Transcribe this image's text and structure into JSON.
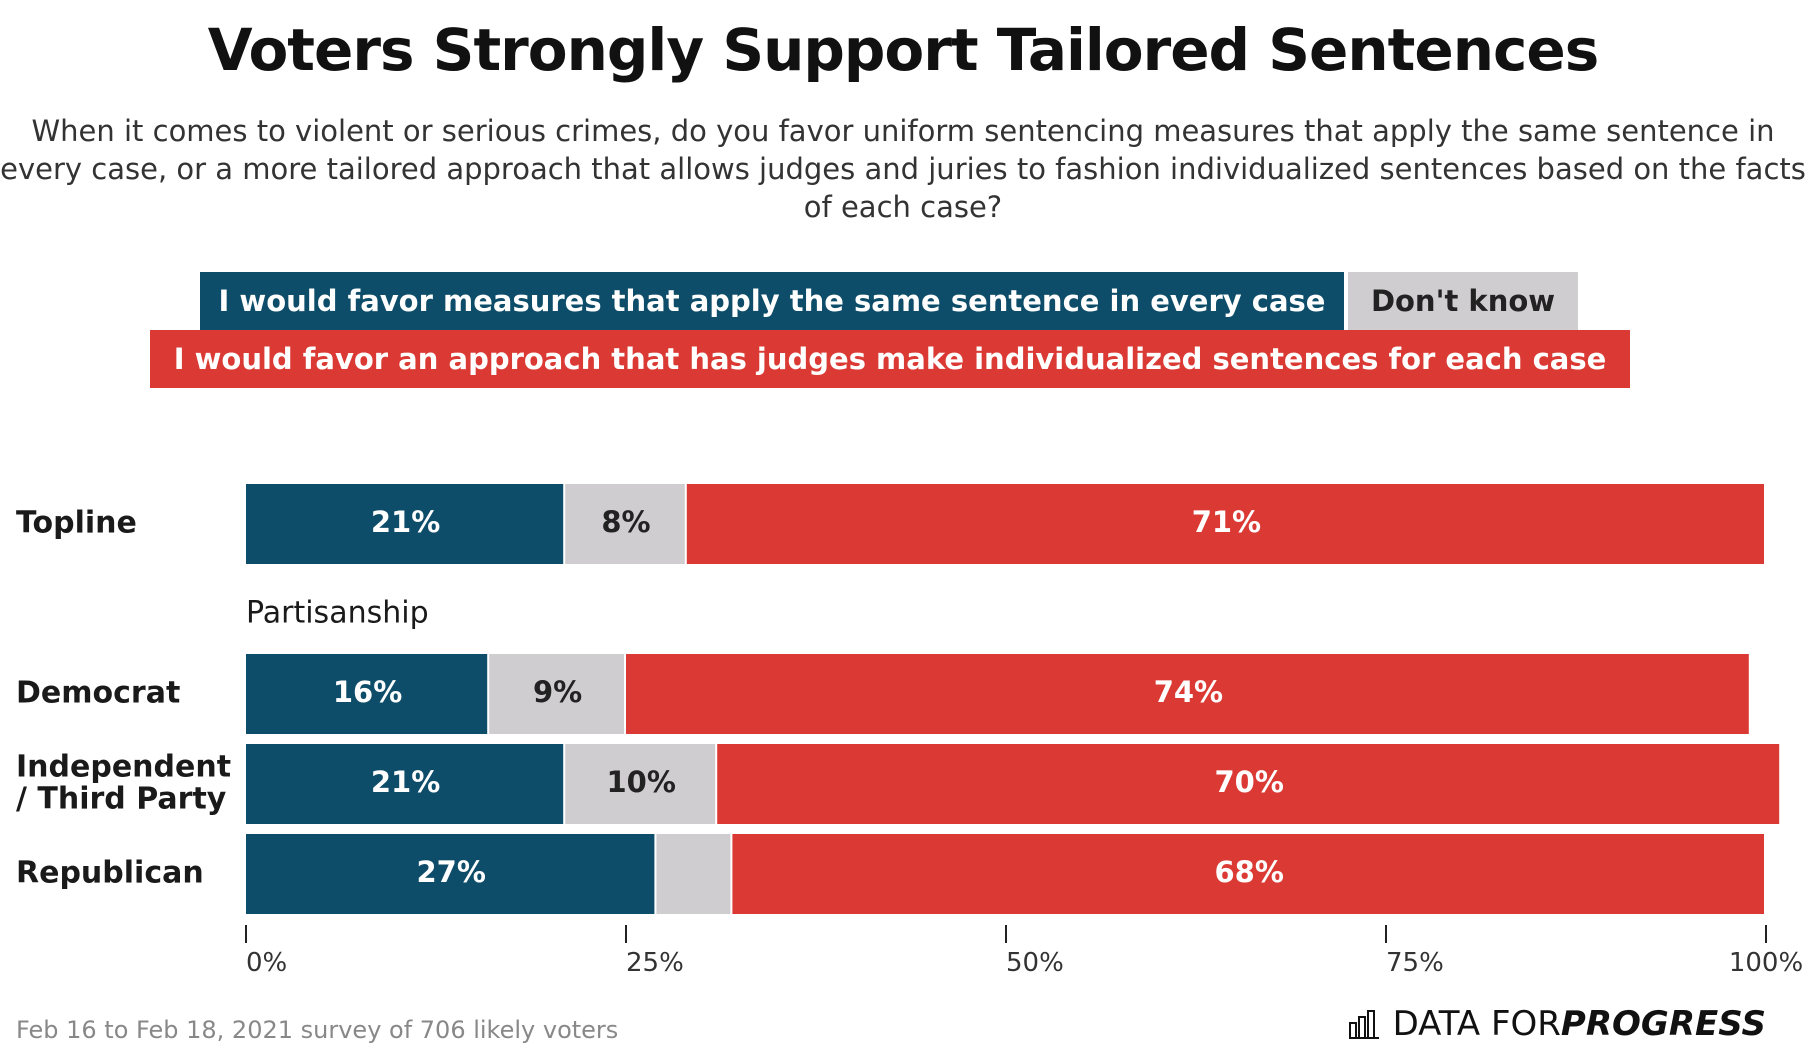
{
  "chart_data": {
    "type": "bar",
    "orientation": "horizontal",
    "stacked": true,
    "title": "Voters Strongly Support Tailored Sentences",
    "subtitle": "When it comes to violent or serious crimes, do you favor uniform sentencing measures that apply the same sentence in every case, or a more tailored approach that allows judges and juries to fashion individualized sentences based on the facts of each case?",
    "legend_placement": "top",
    "xlim": [
      0,
      100
    ],
    "x_ticks": [
      "0%",
      "25%",
      "50%",
      "75%",
      "100%"
    ],
    "series": [
      {
        "name": "I would favor measures that apply the same sentence in every case",
        "color": "#0e4d69",
        "label_color": "#ffffff"
      },
      {
        "name": "Don't know",
        "color": "#d0cdd0",
        "label_color": "#222222"
      },
      {
        "name": "I would favor an approach that has judges make individualized sentences for each case",
        "color": "#db3a34",
        "label_color": "#ffffff"
      }
    ],
    "rows": [
      {
        "label": "Topline",
        "values": [
          21,
          8,
          71
        ],
        "labels": [
          "21%",
          "8%",
          "71%"
        ]
      },
      {
        "group": "Partisanship"
      },
      {
        "label": "Democrat",
        "values": [
          16,
          9,
          74
        ],
        "labels": [
          "16%",
          "9%",
          "74%"
        ]
      },
      {
        "label": "Independent / Third Party",
        "label_lines": [
          "Independent",
          "/ Third Party"
        ],
        "values": [
          21,
          10,
          70
        ],
        "labels": [
          "21%",
          "10%",
          "70%"
        ]
      },
      {
        "label": "Republican",
        "values": [
          27,
          5,
          68
        ],
        "labels": [
          "27%",
          "",
          "68%"
        ]
      }
    ]
  },
  "footnote": "Feb 16 to Feb 18, 2021 survey of 706 likely voters",
  "brand": {
    "part1": "DATA FOR ",
    "part2": "PROGRESS"
  }
}
